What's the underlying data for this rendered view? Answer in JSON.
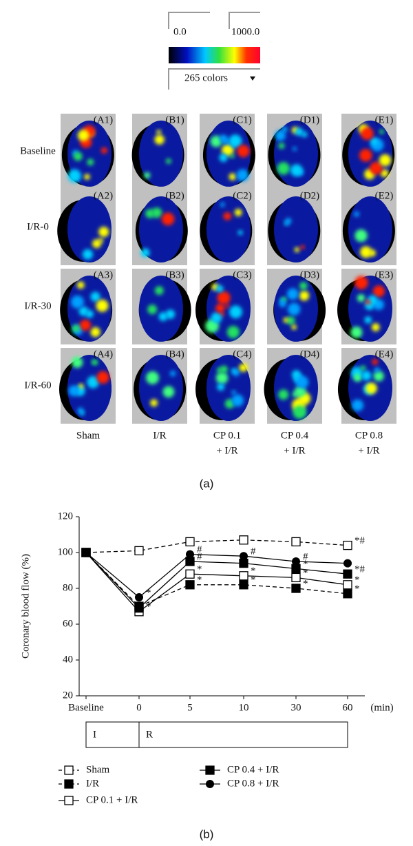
{
  "panel_a": {
    "colorbar": {
      "min_label": "0.0",
      "max_label": "1000.0",
      "dropdown": "265 colors"
    },
    "rows": [
      "Baseline",
      "I/R-0",
      "I/R-30",
      "I/R-60"
    ],
    "columns": [
      [
        "Sham"
      ],
      [
        "I/R"
      ],
      [
        "CP 0.1",
        "+ I/R"
      ],
      [
        "CP 0.4",
        "+ I/R"
      ],
      [
        "CP 0.8",
        "+ I/R"
      ]
    ],
    "panel_labels": [
      [
        "(A1)",
        "(B1)",
        "(C1)",
        "(D1)",
        "(E1)"
      ],
      [
        "(A2)",
        "(B2)",
        "(C2)",
        "(D2)",
        "(E2)"
      ],
      [
        "(A3)",
        "(B3)",
        "(C3)",
        "(D3)",
        "(E3)"
      ],
      [
        "(A4)",
        "(B4)",
        "(C4)",
        "(D4)",
        "(E4)"
      ]
    ],
    "caption": "(a)"
  },
  "chart_data": {
    "type": "line",
    "ylabel": "Coronary blood flow (%)",
    "x_unit": "(min)",
    "categories": [
      "Baseline",
      "0",
      "5",
      "10",
      "30",
      "60"
    ],
    "ylim": [
      20,
      120
    ],
    "yticks": [
      20,
      40,
      60,
      80,
      100,
      120
    ],
    "series": [
      {
        "name": "Sham",
        "color": "#000000",
        "marker": "square-open",
        "dashed": true,
        "values": [
          100,
          101,
          106,
          107,
          106,
          104
        ]
      },
      {
        "name": "I/R",
        "color": "#000000",
        "marker": "square-filled",
        "dashed": true,
        "values": [
          100,
          70,
          82,
          82,
          80,
          77
        ]
      },
      {
        "name": "CP 0.1 + I/R",
        "color": "#000000",
        "marker": "square-open",
        "dashed": false,
        "values": [
          100,
          67,
          88,
          87,
          86,
          82
        ]
      },
      {
        "name": "CP 0.4 + I/R",
        "color": "#000000",
        "marker": "square-filled",
        "dashed": false,
        "values": [
          100,
          69,
          95,
          94,
          91,
          88
        ]
      },
      {
        "name": "CP 0.8 + I/R",
        "color": "#000000",
        "marker": "circle-filled",
        "dashed": false,
        "values": [
          100,
          75,
          99,
          98,
          95,
          94
        ]
      }
    ],
    "annotations": [
      {
        "text": "*",
        "series": 4,
        "point": 1
      },
      {
        "text": "*",
        "series": 2,
        "point": 1
      },
      {
        "text": "*",
        "series": 1,
        "point": 2
      },
      {
        "text": "*",
        "series": 2,
        "point": 2
      },
      {
        "text": "#",
        "series": 3,
        "point": 2
      },
      {
        "text": "#",
        "series": 4,
        "point": 2
      },
      {
        "text": "*",
        "series": 1,
        "point": 3
      },
      {
        "text": "*",
        "series": 2,
        "point": 3
      },
      {
        "text": "#",
        "series": 4,
        "point": 3
      },
      {
        "text": "*",
        "series": 1,
        "point": 4
      },
      {
        "text": "*",
        "series": 2,
        "point": 4
      },
      {
        "text": "*",
        "series": 3,
        "point": 4
      },
      {
        "text": "#",
        "series": 4,
        "point": 4
      },
      {
        "text": "*",
        "series": 1,
        "point": 5
      },
      {
        "text": "*",
        "series": 2,
        "point": 5
      },
      {
        "text": "*#",
        "series": 3,
        "point": 5
      },
      {
        "text": "*#",
        "series": 0,
        "point": 5
      }
    ],
    "phases": [
      "I",
      "R"
    ],
    "caption": "(b)"
  }
}
